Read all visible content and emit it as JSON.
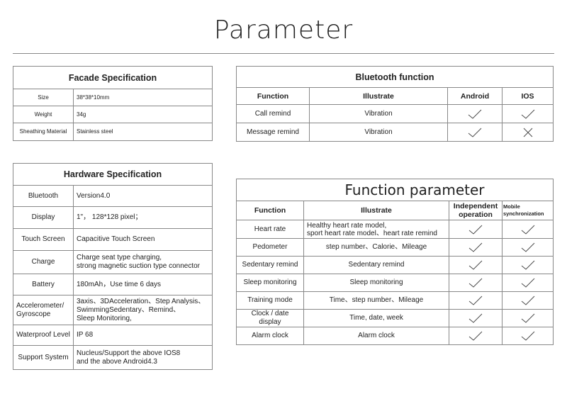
{
  "title": "Parameter",
  "facade": {
    "title": "Facade Specification",
    "rows": [
      {
        "label": "Size",
        "value": "38*38*10mm"
      },
      {
        "label": "Weight",
        "value": "34g"
      },
      {
        "label": "Sheathing Material",
        "value": "Stainless steel"
      }
    ]
  },
  "bluetooth": {
    "title": "Bluetooth function",
    "headers": [
      "Function",
      "Illustrate",
      "Android",
      "IOS"
    ],
    "rows": [
      {
        "function": "Call remind",
        "illustrate": "Vibration",
        "android": "check-icon",
        "ios": "check-icon"
      },
      {
        "function": "Message remind",
        "illustrate": "Vibration",
        "android": "check-icon",
        "ios": "cross-icon"
      }
    ]
  },
  "hardware": {
    "title": "Hardware Specification",
    "rows": [
      {
        "label": "Bluetooth",
        "value": "Version4.0"
      },
      {
        "label": "Display",
        "value": "1\"，  128*128 pixel；"
      },
      {
        "label": "Touch Screen",
        "value": "Capacitive Touch Screen"
      },
      {
        "label": "Charge",
        "value": "Charge seat type charging,\nstrong magnetic suction type connector"
      },
      {
        "label": "Battery",
        "value": "180mAh，Use time 6 days"
      },
      {
        "label": "Accelerometer/\nGyroscope",
        "value": "3axis、3DAcceleration、Step Analysis、\nSwimmingSedentary、Remind、\nSleep Monitoring,"
      },
      {
        "label": "Waterproof Level",
        "value": "IP 68"
      },
      {
        "label": "Support System",
        "value": "Nucleus/Support the above IOS8\nand the above Android4.3"
      }
    ]
  },
  "function_parameter": {
    "title": "Function parameter",
    "headers": [
      "Function",
      "Illustrate",
      "Independent\noperation",
      "Mobile\nsynchronization"
    ],
    "rows": [
      {
        "function": "Heart rate",
        "illustrate": "Healthy heart rate model,\nsport heart rate model、heart rate remind"
      },
      {
        "function": "Pedometer",
        "illustrate": "step number、Calorie、Mileage"
      },
      {
        "function": "Sedentary remind",
        "illustrate": "Sedentary remind"
      },
      {
        "function": "Sleep monitoring",
        "illustrate": "Sleep monitoring"
      },
      {
        "function": "Training mode",
        "illustrate": "Time、step number、Mileage"
      },
      {
        "function": "Clock / date display",
        "illustrate": "Time, date, week"
      },
      {
        "function": "Alarm clock",
        "illustrate": "Alarm clock"
      }
    ]
  }
}
